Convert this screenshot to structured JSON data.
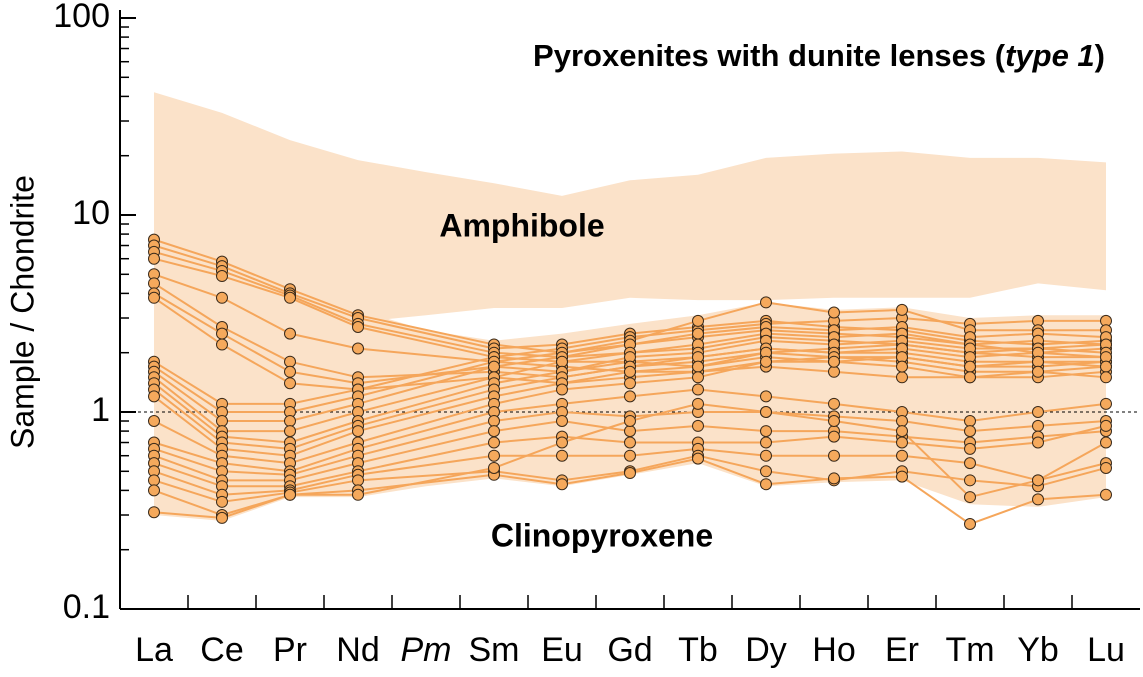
{
  "chart_data": {
    "type": "line",
    "title": [
      "Pyroxenites with dunite lenses (",
      "type 1",
      ")"
    ],
    "y_label": "Sample / Chondrite",
    "log_scale": true,
    "ylim": [
      0.1,
      100
    ],
    "yticks": [
      0.1,
      1,
      10,
      100
    ],
    "yminorticks": [
      0.2,
      0.3,
      0.4,
      0.5,
      0.6,
      0.7,
      0.8,
      0.9,
      2,
      3,
      4,
      5,
      6,
      7,
      8,
      9,
      20,
      30,
      40,
      50,
      60,
      70,
      80,
      90
    ],
    "reference_line": 1,
    "missing_element_italic": true,
    "categories": [
      "La",
      "Ce",
      "Pr",
      "Nd",
      "Pm",
      "Sm",
      "Eu",
      "Gd",
      "Tb",
      "Dy",
      "Ho",
      "Er",
      "Tm",
      "Yb",
      "Lu"
    ],
    "envelopes": [
      {
        "name": "Amphibole",
        "color": "#fbe2c9",
        "upper": [
          42,
          33,
          24,
          19,
          16.5,
          14.5,
          12.5,
          15,
          16,
          19.5,
          20.5,
          21,
          19.5,
          19.5,
          18.5
        ],
        "lower": [
          2.67,
          1.54,
          2.06,
          2.86,
          3.1,
          3.37,
          3.37,
          3.8,
          3.7,
          3.7,
          3.8,
          3.8,
          3.8,
          4.5,
          4.15
        ]
      },
      {
        "name": "Clinopyroxene",
        "color": "#fbe2c9",
        "upper": [
          7.8,
          6.2,
          4.4,
          3.3,
          2.6,
          2.3,
          2.5,
          2.8,
          3.1,
          3.6,
          3.3,
          3.4,
          3.0,
          3.1,
          3.1
        ],
        "lower": [
          0.3,
          0.28,
          0.37,
          0.37,
          0.42,
          0.46,
          0.42,
          0.48,
          0.55,
          0.42,
          0.44,
          0.45,
          0.34,
          0.33,
          0.37
        ]
      }
    ],
    "line_color": "#f5a65b",
    "marker_color": "#f5a95c",
    "series": [
      {
        "values": [
          7.5,
          5.8,
          4.2,
          3.1,
          null,
          2.2,
          2.0,
          2.2,
          2.4,
          2.6,
          2.5,
          2.4,
          2.2,
          2.0,
          2.1
        ]
      },
      {
        "values": [
          7.0,
          5.5,
          4.0,
          3.0,
          null,
          2.1,
          2.2,
          2.5,
          2.7,
          2.9,
          2.7,
          2.6,
          2.3,
          2.2,
          2.3
        ]
      },
      {
        "values": [
          6.5,
          5.2,
          3.9,
          2.8,
          null,
          2.0,
          1.9,
          2.0,
          2.1,
          2.4,
          2.3,
          2.2,
          2.0,
          1.9,
          1.9
        ]
      },
      {
        "values": [
          6.0,
          4.9,
          3.8,
          2.7,
          null,
          1.9,
          1.8,
          1.8,
          1.9,
          2.1,
          2.0,
          2.0,
          1.8,
          1.8,
          1.8
        ]
      },
      {
        "values": [
          5.0,
          3.8,
          2.5,
          2.1,
          null,
          1.8,
          1.7,
          1.6,
          1.6,
          1.8,
          1.9,
          1.8,
          1.6,
          1.6,
          1.7
        ]
      },
      {
        "values": [
          4.5,
          2.7,
          1.8,
          1.5,
          null,
          1.6,
          1.5,
          1.7,
          1.8,
          2.0,
          2.1,
          2.2,
          2.0,
          2.1,
          2.2
        ]
      },
      {
        "values": [
          4.0,
          2.5,
          1.6,
          1.4,
          null,
          1.7,
          1.6,
          1.8,
          1.7,
          1.9,
          1.8,
          1.9,
          1.7,
          1.7,
          1.8
        ]
      },
      {
        "values": [
          3.8,
          2.2,
          1.4,
          1.3,
          null,
          1.5,
          1.4,
          1.5,
          1.6,
          1.7,
          1.6,
          1.5,
          1.5,
          1.5,
          1.6
        ]
      },
      {
        "values": [
          1.8,
          1.1,
          1.1,
          1.3,
          null,
          1.9,
          2.1,
          2.4,
          2.6,
          2.8,
          2.9,
          3.0,
          2.8,
          2.9,
          2.9
        ]
      },
      {
        "values": [
          1.7,
          1.0,
          1.0,
          1.2,
          null,
          1.8,
          2.0,
          2.3,
          2.9,
          3.6,
          3.2,
          3.3,
          2.6,
          2.6,
          2.6
        ]
      },
      {
        "values": [
          1.6,
          0.9,
          0.9,
          1.1,
          null,
          1.7,
          1.9,
          2.2,
          2.5,
          2.7,
          2.6,
          2.7,
          2.4,
          2.5,
          2.4
        ]
      },
      {
        "values": [
          1.5,
          0.8,
          0.8,
          1.0,
          null,
          1.5,
          1.8,
          2.0,
          2.2,
          2.5,
          2.4,
          2.5,
          2.2,
          2.3,
          2.2
        ]
      },
      {
        "values": [
          1.4,
          0.75,
          0.7,
          0.9,
          null,
          1.4,
          1.6,
          1.9,
          2.0,
          2.3,
          2.2,
          2.3,
          2.1,
          2.1,
          2.0
        ]
      },
      {
        "values": [
          1.3,
          0.7,
          0.65,
          0.85,
          null,
          1.3,
          1.5,
          1.7,
          1.9,
          2.1,
          2.0,
          2.1,
          1.9,
          2.0,
          1.9
        ]
      },
      {
        "values": [
          1.2,
          0.65,
          0.6,
          0.8,
          null,
          1.2,
          1.4,
          1.6,
          1.7,
          2.0,
          1.9,
          1.9,
          1.7,
          1.8,
          1.7
        ]
      },
      {
        "values": [
          0.9,
          0.6,
          0.55,
          0.7,
          null,
          1.1,
          1.3,
          1.4,
          1.5,
          1.8,
          1.8,
          1.7,
          1.5,
          1.6,
          1.5
        ]
      },
      {
        "values": [
          0.7,
          0.55,
          0.5,
          0.65,
          null,
          1.0,
          1.1,
          1.2,
          1.3,
          1.2,
          1.1,
          1.0,
          0.9,
          1.0,
          1.1
        ]
      },
      {
        "values": [
          0.65,
          0.5,
          0.48,
          0.6,
          null,
          0.9,
          1.0,
          0.95,
          1.0,
          1.0,
          0.95,
          0.9,
          0.8,
          0.85,
          0.9
        ]
      },
      {
        "values": [
          0.6,
          0.45,
          0.45,
          0.55,
          null,
          0.8,
          0.9,
          0.8,
          0.85,
          0.8,
          0.8,
          0.75,
          0.7,
          0.75,
          0.8
        ]
      },
      {
        "values": [
          0.55,
          0.42,
          0.42,
          0.5,
          null,
          0.7,
          0.75,
          0.7,
          0.7,
          0.7,
          0.75,
          0.7,
          0.65,
          0.7,
          0.85
        ]
      },
      {
        "values": [
          0.5,
          0.38,
          0.4,
          0.48,
          null,
          0.6,
          0.6,
          0.6,
          0.65,
          0.6,
          0.6,
          0.6,
          0.55,
          0.45,
          0.55
        ]
      },
      {
        "values": [
          0.45,
          0.35,
          0.39,
          0.45,
          null,
          0.5,
          0.45,
          0.5,
          0.6,
          0.5,
          0.45,
          0.5,
          0.45,
          0.42,
          0.52
        ]
      },
      {
        "values": [
          0.4,
          0.3,
          0.38,
          0.4,
          null,
          0.48,
          0.43,
          0.49,
          0.58,
          0.43,
          0.46,
          0.47,
          0.27,
          0.36,
          0.38
        ]
      },
      {
        "values": [
          0.31,
          0.29,
          0.38,
          0.38,
          null,
          0.52,
          0.7,
          0.9,
          1.1,
          1.0,
          0.9,
          0.8,
          0.37,
          0.45,
          0.7
        ]
      }
    ]
  }
}
